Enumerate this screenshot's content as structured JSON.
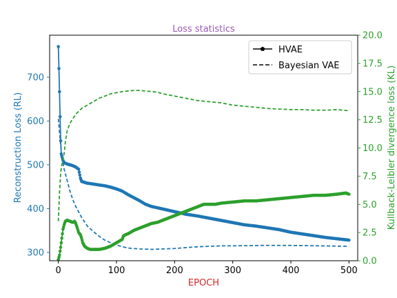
{
  "chart_data": {
    "type": "line",
    "title": "Loss statistics",
    "xlabel": "EPOCH",
    "ylabel_left": "Reconstruction Loss (RL)",
    "ylabel_right": "Kullback-Leibler divergence loss (KL)",
    "xlim": [
      -15,
      515
    ],
    "ylim_left": [
      281,
      796
    ],
    "ylim_right": [
      0,
      20
    ],
    "x_ticks": [
      0,
      100,
      200,
      300,
      400,
      500
    ],
    "y_left_ticks": [
      300,
      400,
      500,
      600,
      700
    ],
    "y_right_ticks": [
      0.0,
      2.5,
      5.0,
      7.5,
      10.0,
      12.5,
      15.0,
      17.5,
      20.0
    ],
    "x_tick_labels": [
      "0",
      "100",
      "200",
      "300",
      "400",
      "500"
    ],
    "y_left_tick_labels": [
      "300",
      "400",
      "500",
      "600",
      "700"
    ],
    "y_right_tick_labels": [
      "0.0",
      "2.5",
      "5.0",
      "7.5",
      "10.0",
      "12.5",
      "15.0",
      "17.5",
      "20.0"
    ],
    "grid": false,
    "legend_position": "top-right",
    "legend": [
      {
        "label": "HVAE",
        "style": "solid-marker"
      },
      {
        "label": "Bayesian VAE",
        "style": "dashed"
      }
    ],
    "series": [
      {
        "name": "HVAE",
        "metric": "RL",
        "axis": "left",
        "style": "solid-marker",
        "x": [
          0,
          1,
          2,
          3,
          4,
          5,
          8,
          10,
          15,
          20,
          25,
          30,
          35,
          38,
          40,
          45,
          50,
          60,
          70,
          80,
          90,
          100,
          110,
          120,
          130,
          140,
          150,
          160,
          170,
          180,
          200,
          220,
          240,
          260,
          280,
          300,
          320,
          340,
          360,
          380,
          400,
          420,
          440,
          460,
          480,
          500
        ],
        "y": [
          770,
          720,
          667,
          610,
          555,
          525,
          510,
          505,
          502,
          500,
          498,
          495,
          490,
          470,
          462,
          460,
          458,
          456,
          454,
          452,
          449,
          445,
          440,
          432,
          425,
          418,
          410,
          405,
          402,
          399,
          393,
          387,
          383,
          378,
          373,
          368,
          363,
          360,
          356,
          352,
          346,
          342,
          338,
          334,
          331,
          328
        ]
      },
      {
        "name": "Bayesian VAE",
        "metric": "RL",
        "axis": "left",
        "style": "dashed",
        "x": [
          0,
          3,
          5,
          8,
          10,
          15,
          20,
          25,
          30,
          40,
          50,
          60,
          70,
          80,
          90,
          100,
          110,
          120,
          140,
          160,
          180,
          200,
          220,
          240,
          260,
          280,
          300,
          350,
          400,
          450,
          500
        ],
        "y": [
          605,
          560,
          530,
          505,
          490,
          465,
          440,
          420,
          405,
          380,
          360,
          348,
          337,
          328,
          322,
          317,
          313,
          310,
          308,
          307,
          308,
          309,
          311,
          313,
          314,
          315,
          315,
          316,
          316,
          315,
          314
        ]
      },
      {
        "name": "HVAE",
        "metric": "KL",
        "axis": "right",
        "style": "solid-marker",
        "x": [
          0,
          2,
          4,
          6,
          8,
          10,
          12,
          15,
          20,
          25,
          28,
          30,
          32,
          35,
          38,
          40,
          42,
          45,
          50,
          55,
          60,
          70,
          80,
          90,
          100,
          110,
          112,
          115,
          120,
          130,
          140,
          150,
          160,
          170,
          180,
          190,
          200,
          210,
          220,
          230,
          240,
          250,
          260,
          270,
          280,
          300,
          320,
          340,
          360,
          380,
          400,
          420,
          440,
          460,
          480,
          495,
          500
        ],
        "y": [
          0.1,
          0.5,
          1.2,
          2.0,
          2.8,
          3.2,
          3.5,
          3.6,
          3.5,
          3.4,
          3.5,
          3.3,
          3.0,
          2.5,
          2.3,
          2.0,
          1.6,
          1.3,
          1.1,
          1.0,
          1.0,
          1.0,
          1.1,
          1.3,
          1.6,
          1.9,
          2.2,
          2.3,
          2.4,
          2.7,
          2.9,
          3.1,
          3.3,
          3.4,
          3.6,
          3.8,
          4.0,
          4.2,
          4.4,
          4.6,
          4.8,
          5.0,
          5.0,
          5.0,
          5.1,
          5.2,
          5.3,
          5.3,
          5.4,
          5.5,
          5.6,
          5.7,
          5.8,
          5.8,
          5.9,
          6.0,
          5.9
        ]
      },
      {
        "name": "Bayesian VAE",
        "metric": "KL",
        "axis": "right",
        "style": "dashed",
        "x": [
          0,
          2,
          4,
          6,
          8,
          10,
          12,
          15,
          20,
          25,
          30,
          40,
          50,
          60,
          70,
          80,
          90,
          100,
          110,
          120,
          130,
          140,
          150,
          160,
          170,
          180,
          200,
          220,
          240,
          260,
          280,
          300,
          320,
          340,
          360,
          380,
          400,
          420,
          440,
          460,
          480,
          500
        ],
        "y": [
          3.5,
          6.0,
          7.8,
          8.5,
          9.0,
          9.5,
          10.5,
          11.5,
          12.2,
          12.6,
          13.0,
          13.5,
          13.8,
          14.1,
          14.4,
          14.6,
          14.8,
          14.9,
          15.0,
          15.05,
          15.1,
          15.1,
          15.05,
          15.0,
          14.95,
          14.8,
          14.6,
          14.4,
          14.2,
          14.1,
          14.0,
          13.8,
          13.7,
          13.6,
          13.5,
          13.45,
          13.4,
          13.4,
          13.35,
          13.35,
          13.4,
          13.3
        ]
      }
    ],
    "colors": {
      "rl": "#1f77b4",
      "kl": "#2ca02c",
      "title": "#9b59b6",
      "xlabel": "#d62728",
      "frame": "#000000"
    }
  }
}
